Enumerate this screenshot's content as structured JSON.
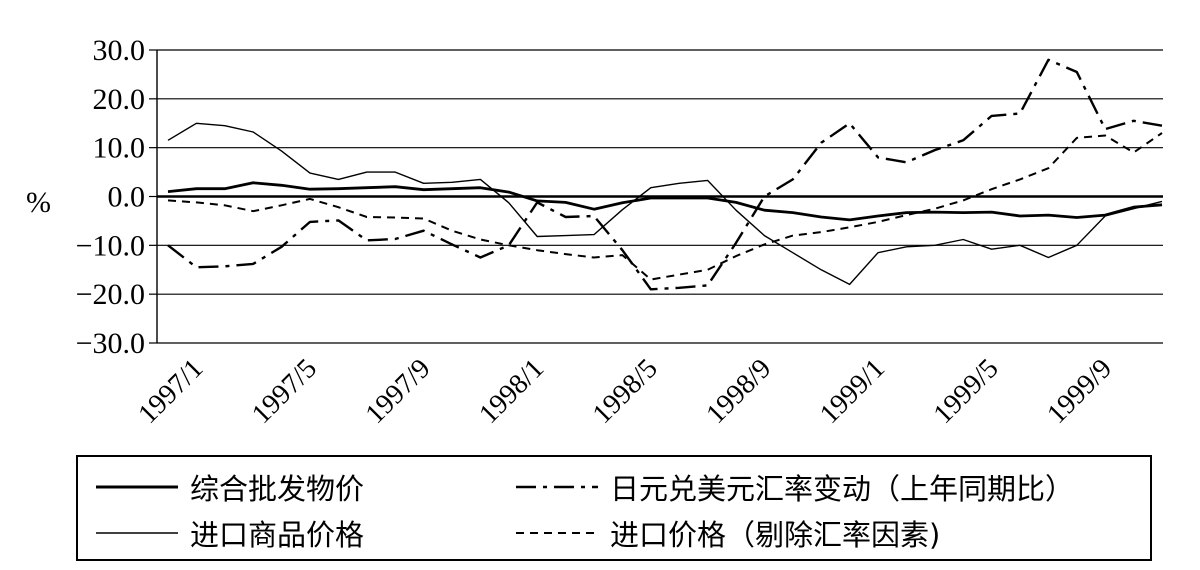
{
  "chart_data": {
    "type": "line",
    "ylabel": "%",
    "ylim": [
      -30,
      30
    ],
    "yticks": [
      "30.0",
      "20.0",
      "10.0",
      "0.0",
      "−10.0",
      "−20.0",
      "−30.0"
    ],
    "ytick_values": [
      30,
      20,
      10,
      0,
      -10,
      -20,
      -30
    ],
    "x": [
      "1996/12",
      "1997/1",
      "1997/2",
      "1997/3",
      "1997/4",
      "1997/5",
      "1997/6",
      "1997/7",
      "1997/8",
      "1997/9",
      "1997/10",
      "1997/11",
      "1997/12",
      "1998/1",
      "1998/2",
      "1998/3",
      "1998/4",
      "1998/5",
      "1998/6",
      "1998/7",
      "1998/8",
      "1998/9",
      "1998/10",
      "1998/11",
      "1998/12",
      "1999/1",
      "1999/2",
      "1999/3",
      "1999/4",
      "1999/5",
      "1999/6",
      "1999/7",
      "1999/8",
      "1999/9",
      "1999/10",
      "1999/11"
    ],
    "xticks": [
      "1997/1",
      "1997/5",
      "1997/9",
      "1998/1",
      "1998/5",
      "1998/9",
      "1999/1",
      "1999/5",
      "1999/9"
    ],
    "series": [
      {
        "name": "综合批发物价",
        "style": "solid-thick",
        "values": [
          1.0,
          1.6,
          1.6,
          2.8,
          2.3,
          1.5,
          1.6,
          1.8,
          2.0,
          1.4,
          1.6,
          1.8,
          0.9,
          -0.9,
          -1.2,
          -2.6,
          -1.3,
          -0.3,
          -0.3,
          -0.3,
          -1.2,
          -2.8,
          -3.3,
          -4.2,
          -4.8,
          -4.0,
          -3.3,
          -3.2,
          -3.3,
          -3.2,
          -4.0,
          -3.8,
          -4.3,
          -3.8,
          -2.2,
          -1.7
        ]
      },
      {
        "name": "日元兑美元汇率变动（上年同期比）",
        "style": "dash-dot",
        "values": [
          -10.0,
          -14.5,
          -14.3,
          -13.8,
          -10.3,
          -5.2,
          -4.9,
          -9.0,
          -8.7,
          -7.0,
          -9.8,
          -12.5,
          -10.0,
          -1.2,
          -4.2,
          -4.0,
          -11.0,
          -19.0,
          -18.7,
          -18.2,
          -9.5,
          0.0,
          3.5,
          11.0,
          15.0,
          8.0,
          7.0,
          9.5,
          11.5,
          16.5,
          17.0,
          28.0,
          25.5,
          13.8,
          15.5,
          14.5
        ]
      },
      {
        "name": "进口商品价格",
        "style": "solid-thin",
        "values": [
          11.5,
          15.0,
          14.5,
          13.2,
          9.3,
          4.8,
          3.5,
          5.0,
          5.0,
          2.7,
          2.9,
          3.5,
          -1.3,
          -8.2,
          -8.0,
          -7.8,
          -2.7,
          1.8,
          2.7,
          3.3,
          -2.8,
          -8.0,
          -11.5,
          -15.0,
          -18.0,
          -11.5,
          -10.3,
          -10.0,
          -8.8,
          -10.8,
          -10.0,
          -12.5,
          -10.0,
          -4.0,
          -2.5,
          -1.0
        ]
      },
      {
        "name": "进口价格（剔除汇率因素)",
        "style": "dashed",
        "values": [
          -0.8,
          -1.2,
          -1.8,
          -3.0,
          -1.8,
          -0.5,
          -2.2,
          -4.2,
          -4.3,
          -4.5,
          -7.0,
          -8.8,
          -10.0,
          -11.0,
          -11.8,
          -12.5,
          -12.0,
          -17.0,
          -16.0,
          -15.0,
          -12.2,
          -9.8,
          -8.0,
          -7.3,
          -6.3,
          -5.2,
          -3.8,
          -2.5,
          -0.8,
          1.5,
          3.5,
          5.8,
          12.0,
          12.5,
          9.0,
          13.0
        ]
      }
    ],
    "legend": [
      {
        "label": "综合批发物价",
        "style": "solid-thick"
      },
      {
        "label": "日元兑美元汇率变动（上年同期比）",
        "style": "dash-dot"
      },
      {
        "label": "进口商品价格",
        "style": "solid-thin"
      },
      {
        "label": "进口价格（剔除汇率因素)",
        "style": "dashed"
      }
    ],
    "grid": true,
    "legend_position": "bottom"
  }
}
